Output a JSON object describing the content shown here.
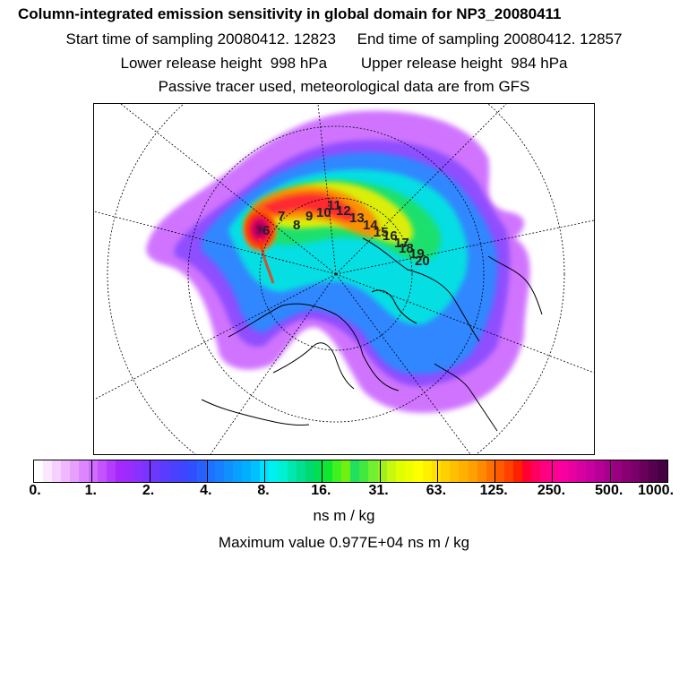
{
  "header": {
    "line1": "Column-integrated emission sensitivity in global domain for NP3_20080411",
    "line2": "Start time of sampling 20080412. 12823     End time of sampling 20080412. 12857",
    "line3": "Lower release height  998 hPa        Upper release height  984 hPa",
    "line4": "Passive tracer used, meteorological data are from GFS"
  },
  "colorbar": {
    "labels": [
      "0.",
      "1.",
      "2.",
      "4.",
      "8.",
      "16.",
      "31.",
      "63.",
      "125.",
      "250.",
      "500.",
      "1000."
    ],
    "colors": [
      "#ffffff",
      "#fbe8ff",
      "#f6d0ff",
      "#f0b8ff",
      "#e8a0ff",
      "#dc86ff",
      "#d06cff",
      "#c452ff",
      "#b53cff",
      "#a528ff",
      "#9b2cff",
      "#8a30ff",
      "#7a34ff",
      "#6a38ff",
      "#5a3cff",
      "#4c40ff",
      "#3e44ff",
      "#3050ff",
      "#2860ff",
      "#2070ff",
      "#1880ff",
      "#1090ff",
      "#08a0ff",
      "#00b0ff",
      "#00c0ff",
      "#00e0ff",
      "#00f0f0",
      "#00f0d0",
      "#00e8b0",
      "#00e090",
      "#00d870",
      "#00e050",
      "#10e830",
      "#40f020",
      "#70f010",
      "#20e060",
      "#40e840",
      "#70f030",
      "#a0f020",
      "#c8f810",
      "#e0ff00",
      "#f0ff00",
      "#ffff00",
      "#fff000",
      "#ffe000",
      "#ffd000",
      "#ffc000",
      "#ffb000",
      "#ffa000",
      "#ff8a00",
      "#ff7000",
      "#ff5a00",
      "#ff4000",
      "#ff2000",
      "#ff0030",
      "#ff0060",
      "#ff0080",
      "#ff0090",
      "#f800a0",
      "#e800a0",
      "#d800a0",
      "#c800a0",
      "#b80098",
      "#a8008c",
      "#980080",
      "#880074",
      "#780068",
      "#68005c",
      "#580050",
      "#480044"
    ]
  },
  "units": "ns m / kg",
  "max_value": "Maximum value  0.977E+04 ns m / kg",
  "track": {
    "labels": [
      "6",
      "7",
      "8",
      "9",
      "10",
      "11",
      "12",
      "13",
      "14",
      "15",
      "16",
      "17",
      "18",
      "19",
      "20"
    ]
  }
}
